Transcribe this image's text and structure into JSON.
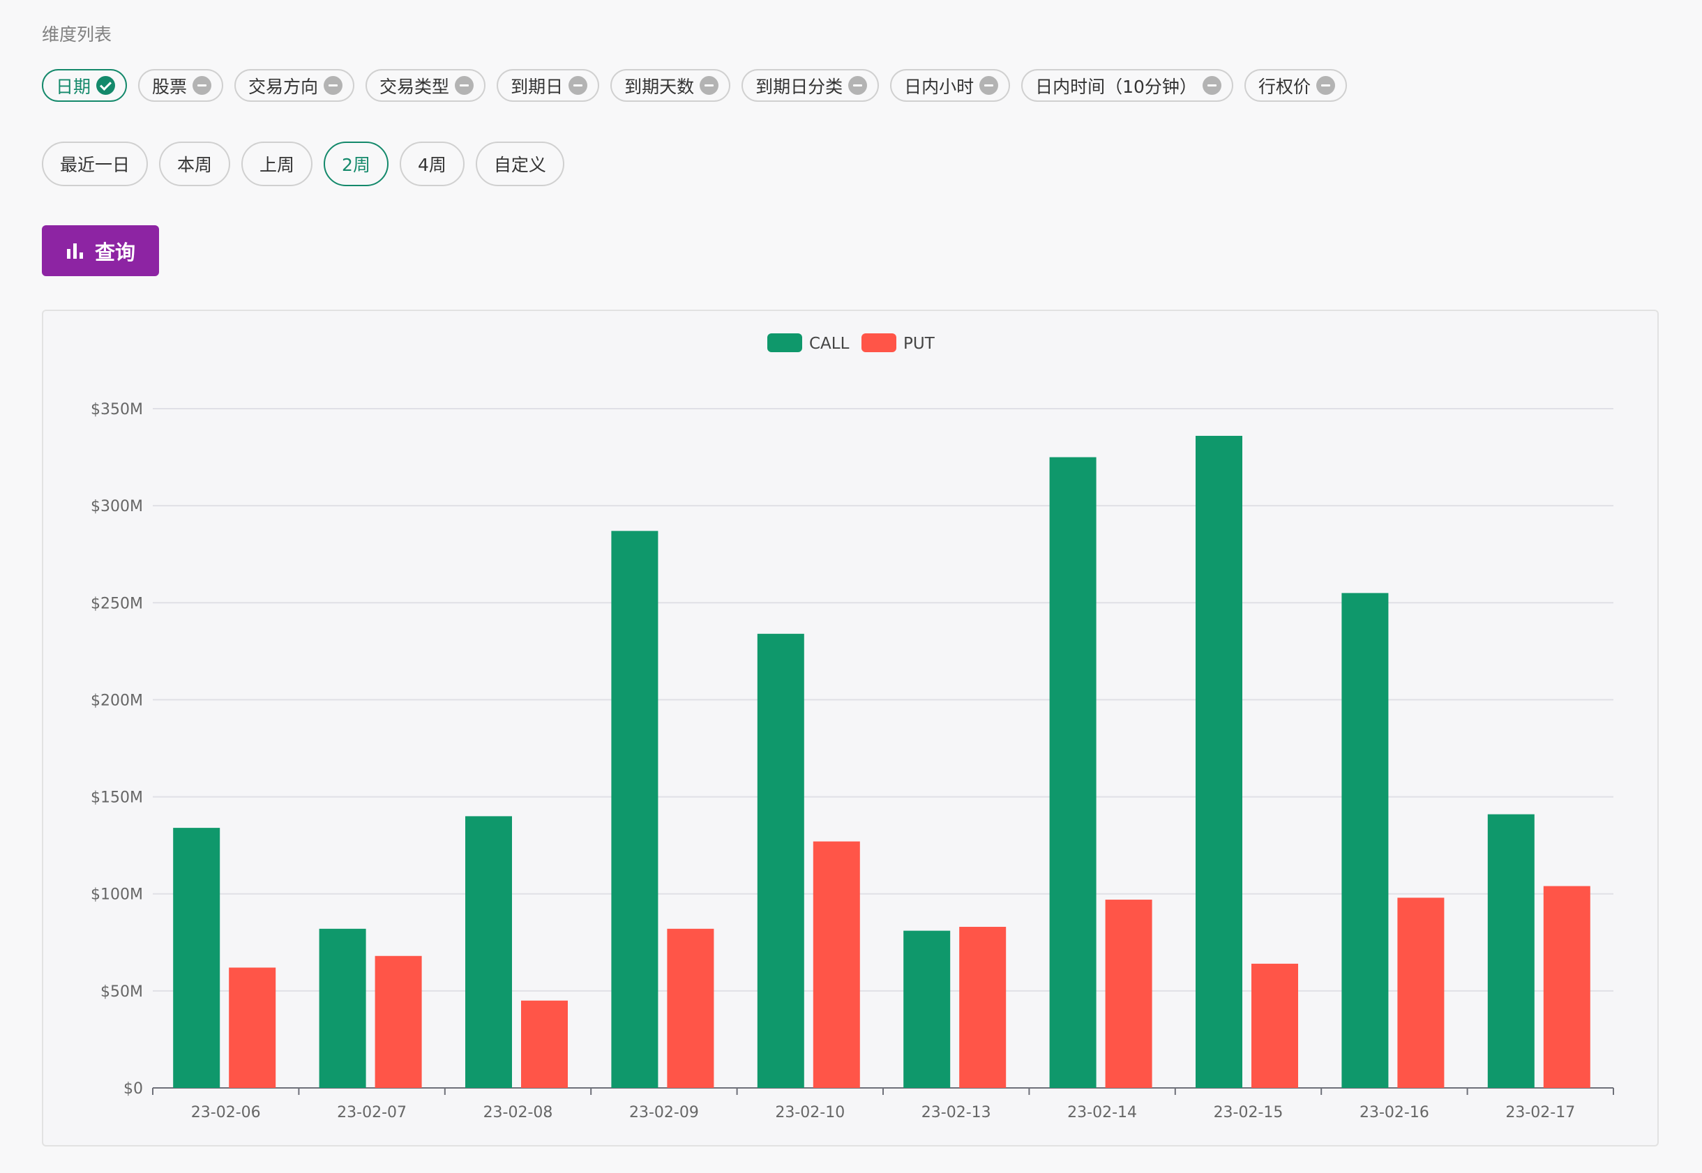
{
  "dimensions": {
    "title": "维度列表",
    "chips": [
      {
        "label": "日期",
        "active": true,
        "icon": "check-circle-icon"
      },
      {
        "label": "股票",
        "active": false,
        "icon": "minus-circle-icon"
      },
      {
        "label": "交易方向",
        "active": false,
        "icon": "minus-circle-icon"
      },
      {
        "label": "交易类型",
        "active": false,
        "icon": "minus-circle-icon"
      },
      {
        "label": "到期日",
        "active": false,
        "icon": "minus-circle-icon"
      },
      {
        "label": "到期天数",
        "active": false,
        "icon": "minus-circle-icon"
      },
      {
        "label": "到期日分类",
        "active": false,
        "icon": "minus-circle-icon"
      },
      {
        "label": "日内小时",
        "active": false,
        "icon": "minus-circle-icon"
      },
      {
        "label": "日内时间（10分钟）",
        "active": false,
        "icon": "minus-circle-icon"
      },
      {
        "label": "行权价",
        "active": false,
        "icon": "minus-circle-icon"
      }
    ]
  },
  "date_range": {
    "options": [
      {
        "label": "最近一日",
        "active": false
      },
      {
        "label": "本周",
        "active": false
      },
      {
        "label": "上周",
        "active": false
      },
      {
        "label": "2周",
        "active": true
      },
      {
        "label": "4周",
        "active": false
      },
      {
        "label": "自定义",
        "active": false
      }
    ]
  },
  "query_button": {
    "label": "查询",
    "icon": "bar-chart-icon",
    "color": "#8d24a3"
  },
  "colors": {
    "accent": "#14896b",
    "call": "#0f986b",
    "put": "#ff5548"
  },
  "chart_data": {
    "type": "bar",
    "categories": [
      "23-02-06",
      "23-02-07",
      "23-02-08",
      "23-02-09",
      "23-02-10",
      "23-02-13",
      "23-02-14",
      "23-02-15",
      "23-02-16",
      "23-02-17"
    ],
    "series": [
      {
        "name": "CALL",
        "color": "#0f986b",
        "values": [
          134,
          82,
          140,
          287,
          234,
          81,
          325,
          336,
          255,
          141
        ]
      },
      {
        "name": "PUT",
        "color": "#ff5548",
        "values": [
          62,
          68,
          45,
          82,
          127,
          83,
          97,
          64,
          98,
          104
        ]
      }
    ],
    "unit": "millions USD",
    "yticks": [
      0,
      50,
      100,
      150,
      200,
      250,
      300,
      350
    ],
    "ytick_labels": [
      "$0",
      "$50M",
      "$100M",
      "$150M",
      "$200M",
      "$250M",
      "$300M",
      "$350M"
    ],
    "ylim": [
      0,
      350
    ],
    "legend": "top-center",
    "grid": true
  }
}
